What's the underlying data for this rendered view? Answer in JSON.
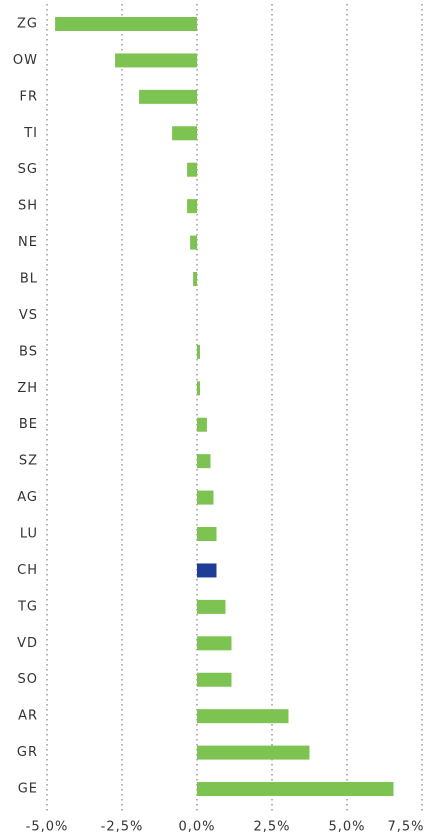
{
  "chart_data": {
    "type": "bar",
    "orientation": "horizontal",
    "categories": [
      "ZG",
      "OW",
      "FR",
      "TI",
      "SG",
      "SH",
      "NE",
      "BL",
      "VS",
      "BS",
      "ZH",
      "BE",
      "SZ",
      "AG",
      "LU",
      "CH",
      "TG",
      "VD",
      "SO",
      "AR",
      "GR",
      "GE"
    ],
    "values": [
      -4.73,
      -2.73,
      -1.93,
      -0.83,
      -0.33,
      -0.33,
      -0.23,
      -0.13,
      0,
      0.1,
      0.1,
      0.33,
      0.45,
      0.55,
      0.65,
      0.65,
      0.95,
      1.15,
      1.15,
      3.05,
      3.75,
      6.55
    ],
    "colors": [
      "#7dc352",
      "#7dc352",
      "#7dc352",
      "#7dc352",
      "#7dc352",
      "#7dc352",
      "#7dc352",
      "#7dc352",
      "#7dc352",
      "#7dc352",
      "#7dc352",
      "#7dc352",
      "#7dc352",
      "#7dc352",
      "#7dc352",
      "#1f3c96",
      "#7dc352",
      "#7dc352",
      "#7dc352",
      "#7dc352",
      "#7dc352",
      "#7dc352"
    ],
    "xlim": [
      -5,
      7.5
    ],
    "xticks": [
      {
        "value": -5,
        "label": "-5,0%"
      },
      {
        "value": -2.5,
        "label": "-2,5%"
      },
      {
        "value": 0,
        "label": "0,0%"
      },
      {
        "value": 2.5,
        "label": "2,5%"
      },
      {
        "value": 5,
        "label": "5,0%"
      },
      {
        "value": 7.5,
        "label": "7,5%"
      }
    ],
    "grid": true
  }
}
